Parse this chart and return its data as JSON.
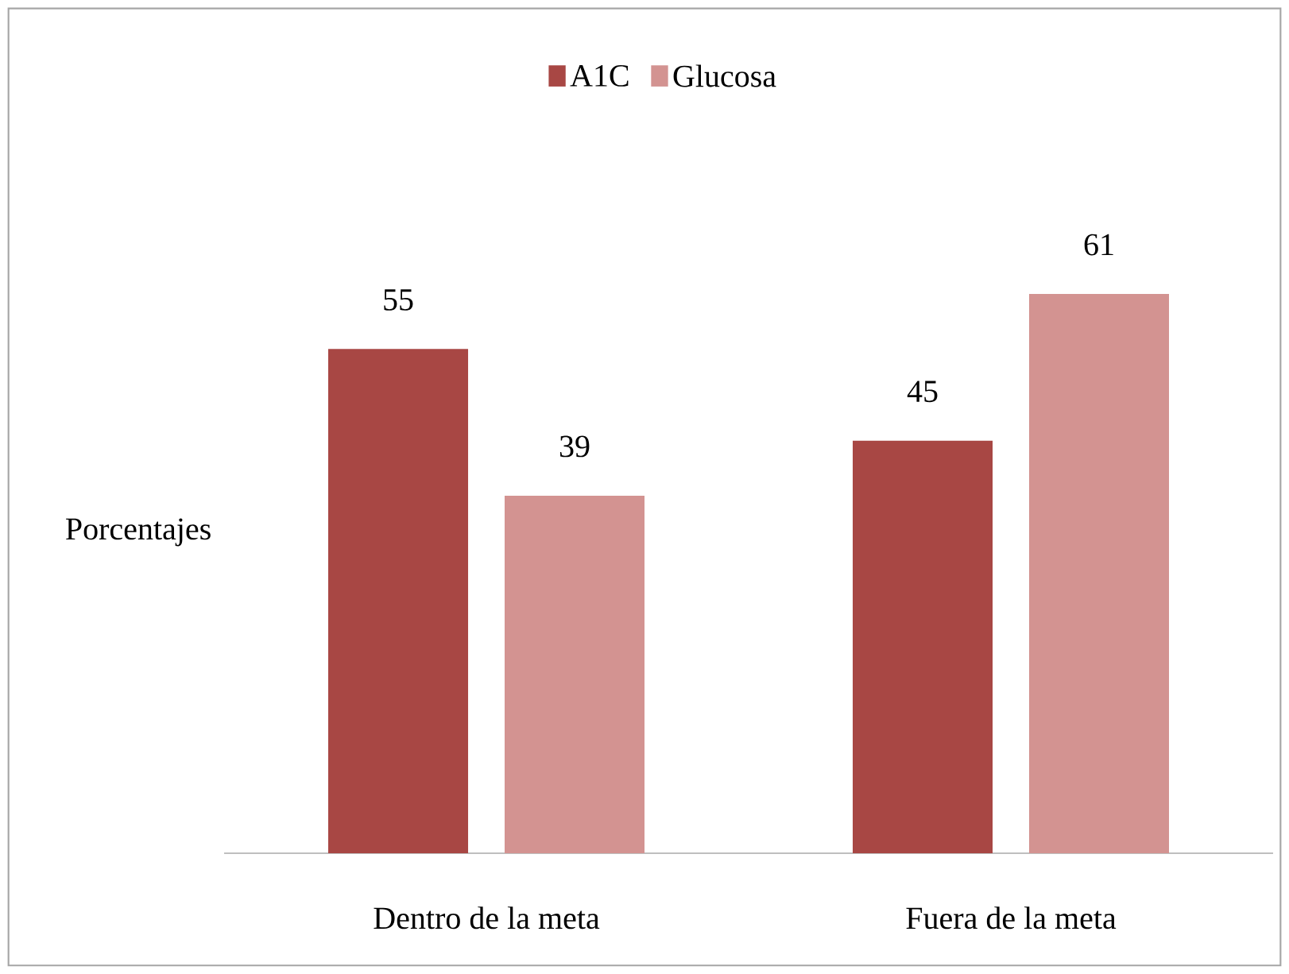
{
  "chart_data": {
    "type": "bar",
    "ylabel": "Porcentajes",
    "categories": [
      "Dentro de  la meta",
      "Fuera de la meta"
    ],
    "series": [
      {
        "name": "A1C",
        "color": "#a84744",
        "values": [
          55,
          45
        ]
      },
      {
        "name": "Glucosa",
        "color": "#d39391",
        "values": [
          39,
          61
        ]
      }
    ],
    "data_labels": true,
    "legend": "top"
  }
}
